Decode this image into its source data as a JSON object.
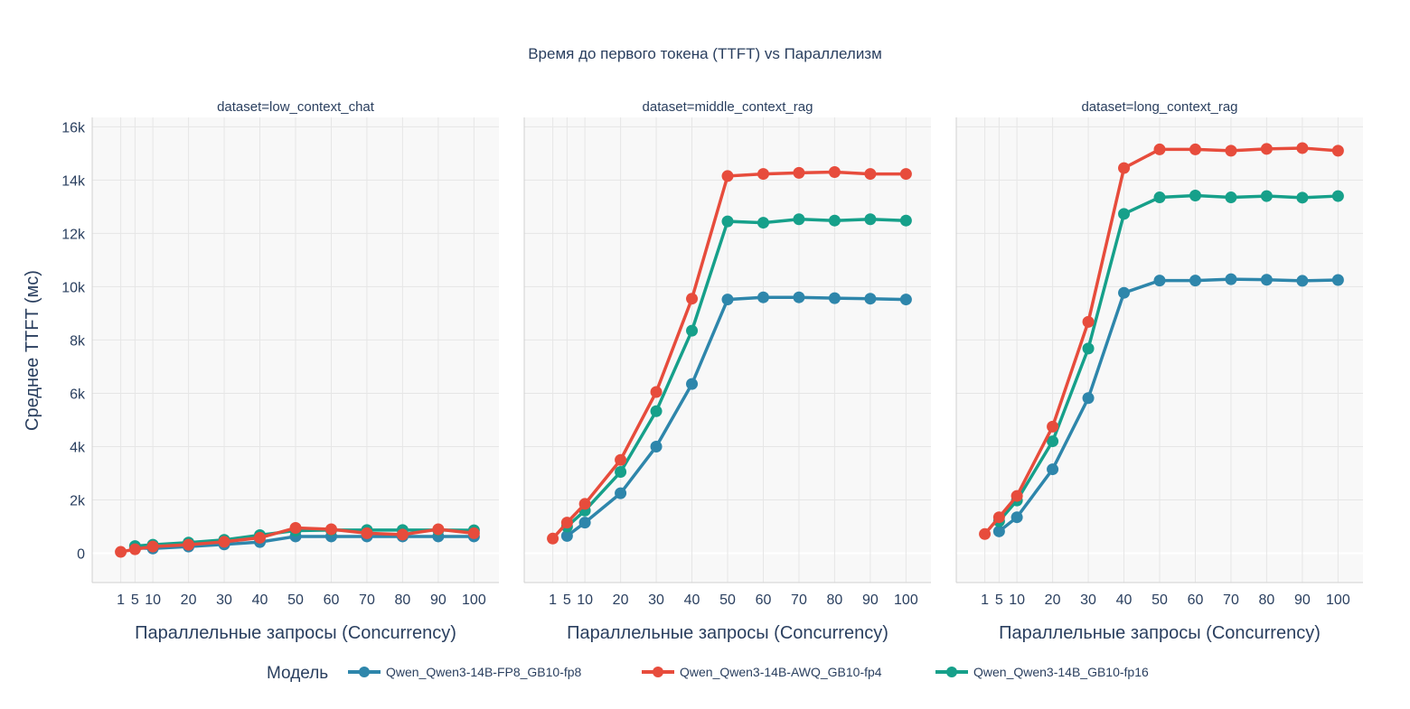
{
  "chart_data": {
    "type": "line",
    "title": "Время до первого токена (TTFT) vs Параллелизм",
    "xlabel": "Параллельные запросы (Concurrency)",
    "ylabel": "Среднее TTFT (мс)",
    "x_ticks": [
      1,
      5,
      10,
      20,
      30,
      40,
      50,
      60,
      70,
      80,
      90,
      100
    ],
    "y_ticks": [
      0,
      2000,
      4000,
      6000,
      8000,
      10000,
      12000,
      14000,
      16000
    ],
    "y_tick_labels": [
      "0",
      "2k",
      "4k",
      "6k",
      "8k",
      "10k",
      "12k",
      "14k",
      "16k"
    ],
    "xlim": [
      -7,
      107
    ],
    "ylim": [
      -1100,
      16350
    ],
    "grid": true,
    "legend": {
      "title": "Модель",
      "placement": "bottom"
    },
    "series_meta": [
      {
        "name": "Qwen_Qwen3-14B-FP8_GB10-fp8",
        "color": "#2e86ab"
      },
      {
        "name": "Qwen_Qwen3-14B-AWQ_GB10-fp4",
        "color": "#e74c3c"
      },
      {
        "name": "Qwen_Qwen3-14B_GB10-fp16",
        "color": "#16a08a"
      }
    ],
    "panels": [
      {
        "title": "dataset=low_context_chat",
        "series": [
          {
            "name": "Qwen_Qwen3-14B-FP8_GB10-fp8",
            "x": [
              5,
              10,
              20,
              30,
              40,
              50,
              60,
              70,
              80,
              90,
              100
            ],
            "y": [
              200,
              180,
              250,
              330,
              420,
              630,
              630,
              630,
              630,
              630,
              630
            ]
          },
          {
            "name": "Qwen_Qwen3-14B-AWQ_GB10-fp4",
            "x": [
              1,
              5,
              10,
              20,
              30,
              40,
              50,
              60,
              70,
              80,
              90,
              100
            ],
            "y": [
              50,
              150,
              250,
              320,
              430,
              580,
              950,
              900,
              750,
              700,
              900,
              750
            ]
          },
          {
            "name": "Qwen_Qwen3-14B_GB10-fp16",
            "x": [
              5,
              10,
              20,
              30,
              40,
              50,
              60,
              70,
              80,
              90,
              100
            ],
            "y": [
              270,
              320,
              400,
              500,
              680,
              850,
              870,
              870,
              870,
              870,
              860
            ]
          }
        ]
      },
      {
        "title": "dataset=middle_context_rag",
        "series": [
          {
            "name": "Qwen_Qwen3-14B-FP8_GB10-fp8",
            "x": [
              5,
              10,
              20,
              30,
              40,
              50,
              60,
              70,
              80,
              90,
              100
            ],
            "y": [
              650,
              1150,
              2250,
              4000,
              6350,
              9520,
              9600,
              9600,
              9570,
              9550,
              9520
            ]
          },
          {
            "name": "Qwen_Qwen3-14B-AWQ_GB10-fp4",
            "x": [
              1,
              5,
              10,
              20,
              30,
              40,
              50,
              60,
              70,
              80,
              90,
              100
            ],
            "y": [
              550,
              1150,
              1850,
              3500,
              6050,
              9550,
              14150,
              14230,
              14270,
              14300,
              14230,
              14230
            ]
          },
          {
            "name": "Qwen_Qwen3-14B_GB10-fp16",
            "x": [
              5,
              10,
              20,
              30,
              40,
              50,
              60,
              70,
              80,
              90,
              100
            ],
            "y": [
              1000,
              1600,
              3050,
              5330,
              8350,
              12450,
              12400,
              12530,
              12480,
              12530,
              12480
            ]
          }
        ]
      },
      {
        "title": "dataset=long_context_rag",
        "series": [
          {
            "name": "Qwen_Qwen3-14B-FP8_GB10-fp8",
            "x": [
              5,
              10,
              20,
              30,
              40,
              50,
              60,
              70,
              80,
              90,
              100
            ],
            "y": [
              820,
              1350,
              3150,
              5820,
              9770,
              10230,
              10230,
              10280,
              10260,
              10220,
              10250
            ]
          },
          {
            "name": "Qwen_Qwen3-14B-AWQ_GB10-fp4",
            "x": [
              1,
              5,
              10,
              20,
              30,
              40,
              50,
              60,
              70,
              80,
              90,
              100
            ],
            "y": [
              720,
              1350,
              2150,
              4750,
              8680,
              14450,
              15150,
              15150,
              15100,
              15170,
              15200,
              15100
            ]
          },
          {
            "name": "Qwen_Qwen3-14B_GB10-fp16",
            "x": [
              5,
              10,
              20,
              30,
              40,
              50,
              60,
              70,
              80,
              90,
              100
            ],
            "y": [
              1200,
              1980,
              4200,
              7680,
              12730,
              13350,
              13420,
              13350,
              13400,
              13340,
              13400
            ]
          }
        ]
      }
    ]
  }
}
